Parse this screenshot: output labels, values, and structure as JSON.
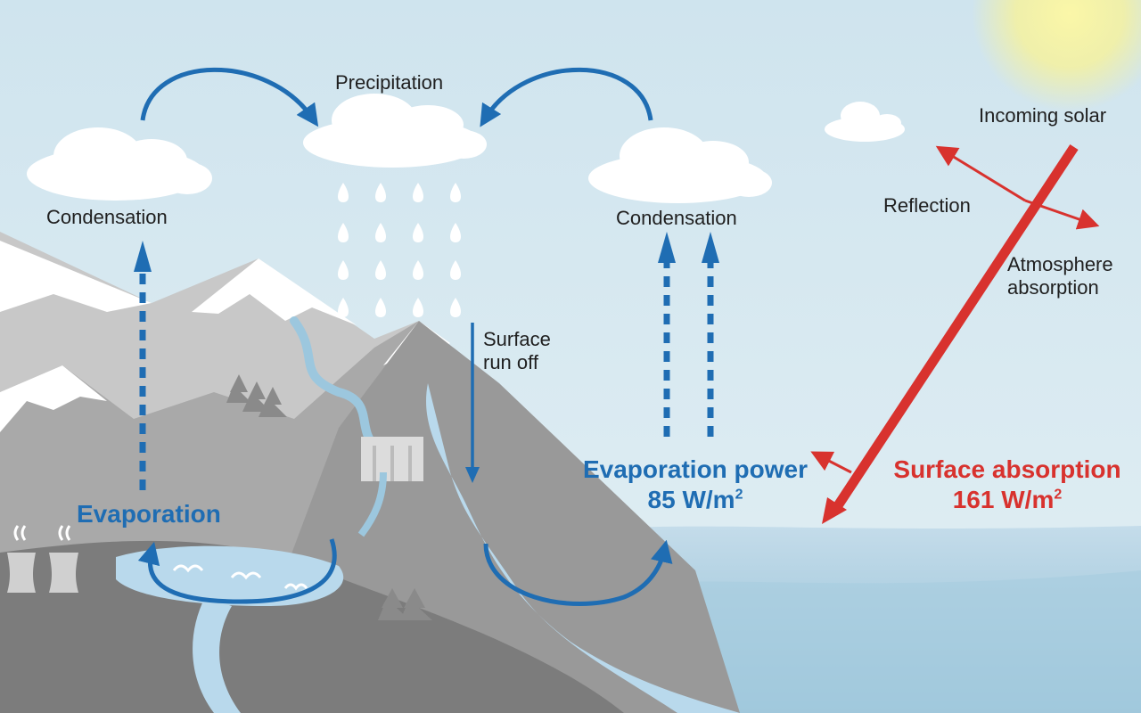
{
  "labels": {
    "precipitation": "Precipitation",
    "condensation_left": "Condensation",
    "condensation_right": "Condensation",
    "surface_runoff_line1": "Surface",
    "surface_runoff_line2": "run off",
    "evaporation": "Evaporation",
    "evaporation_power_title": "Evaporation power",
    "evaporation_power_value": "85 W/m",
    "evaporation_power_exp": "2",
    "incoming_solar": "Incoming solar",
    "reflection": "Reflection",
    "atmosphere_absorption_line1": "Atmosphere",
    "atmosphere_absorption_line2": "absorption",
    "surface_absorption_title": "Surface absorption",
    "surface_absorption_value": "161 W/m",
    "surface_absorption_exp": "2"
  },
  "colors": {
    "sky_top": "#cfe4ee",
    "sky_bottom": "#e2eff4",
    "sun": "#f7f29a",
    "cloud": "#ffffff",
    "mountain_light": "#c8c8c8",
    "mountain_mid": "#a9a9a9",
    "mountain_dark": "#8f8f8f",
    "ground_dark": "#7c7c7c",
    "snow": "#ffffff",
    "water_light": "#b9d9ec",
    "water_mid": "#9cc7de",
    "sea_top": "#c4dcea",
    "sea_bottom": "#8fbdd4",
    "arrow_blue": "#1f6db3",
    "arrow_red": "#d8322e",
    "tree": "#8a8a8a"
  }
}
